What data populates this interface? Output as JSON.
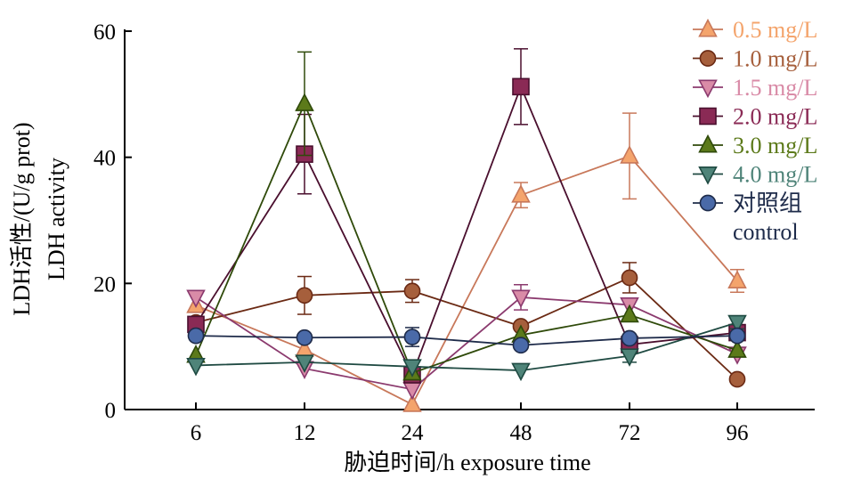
{
  "chart_data": {
    "type": "line",
    "x_categories": [
      "6",
      "12",
      "24",
      "48",
      "72",
      "96"
    ],
    "xlabel": "胁迫时间/h exposure time",
    "ylabel_line1": "LDH活性/(U/g prot)",
    "ylabel_line2": "LDH activity",
    "ylim": [
      0,
      60
    ],
    "yticks": [
      "0",
      "20",
      "40",
      "60"
    ],
    "legend_position": "top-right",
    "series": [
      {
        "name": "0.5 mg/L",
        "color": "#C8785A",
        "marker": "triangle-up",
        "fill": "#F4A46C",
        "values": [
          16.5,
          9.5,
          0.8,
          34,
          40.2,
          20.4
        ],
        "errors": [
          0,
          0,
          0,
          2.0,
          6.8,
          1.8
        ]
      },
      {
        "name": "1.0 mg/L",
        "color": "#6B2A14",
        "marker": "circle",
        "fill": "#A65F3C",
        "values": [
          13.8,
          18.1,
          18.8,
          13.2,
          20.9,
          4.8
        ],
        "errors": [
          0,
          3.0,
          1.8,
          0,
          2.4,
          0
        ]
      },
      {
        "name": "1.5 mg/L",
        "color": "#8B3A6E",
        "marker": "triangle-down",
        "fill": "#D98BA7",
        "values": [
          17.8,
          6.5,
          3.2,
          17.8,
          16.6,
          8.8
        ],
        "errors": [
          0,
          0,
          0,
          2.0,
          0,
          0
        ]
      },
      {
        "name": "2.0 mg/L",
        "color": "#4A0F2E",
        "marker": "square",
        "fill": "#8A2A55",
        "values": [
          13.5,
          40.5,
          5.5,
          51.2,
          10.3,
          12.2
        ],
        "errors": [
          0,
          6.3,
          0,
          6.0,
          0,
          0
        ]
      },
      {
        "name": "3.0 mg/L",
        "color": "#2F4A0A",
        "marker": "triangle-up",
        "fill": "#5C7A1A",
        "values": [
          8.6,
          48.5,
          5.8,
          11.8,
          15,
          9.4
        ],
        "errors": [
          0,
          8.2,
          0,
          0,
          0,
          0
        ]
      },
      {
        "name": "4.0 mg/L",
        "color": "#1F4A42",
        "marker": "triangle-down",
        "fill": "#4F8479",
        "values": [
          7,
          7.5,
          6.8,
          6.2,
          8.5,
          13.8
        ],
        "errors": [
          0,
          0,
          0,
          0,
          1.0,
          1.0
        ]
      },
      {
        "name": "对照组",
        "name_line2": "control",
        "color": "#1E2B4A",
        "marker": "circle",
        "fill": "#4A6AA8",
        "values": [
          11.7,
          11.4,
          11.5,
          10.2,
          11.3,
          11.7
        ],
        "errors": [
          0,
          0,
          1.5,
          0,
          0,
          0
        ]
      }
    ]
  }
}
